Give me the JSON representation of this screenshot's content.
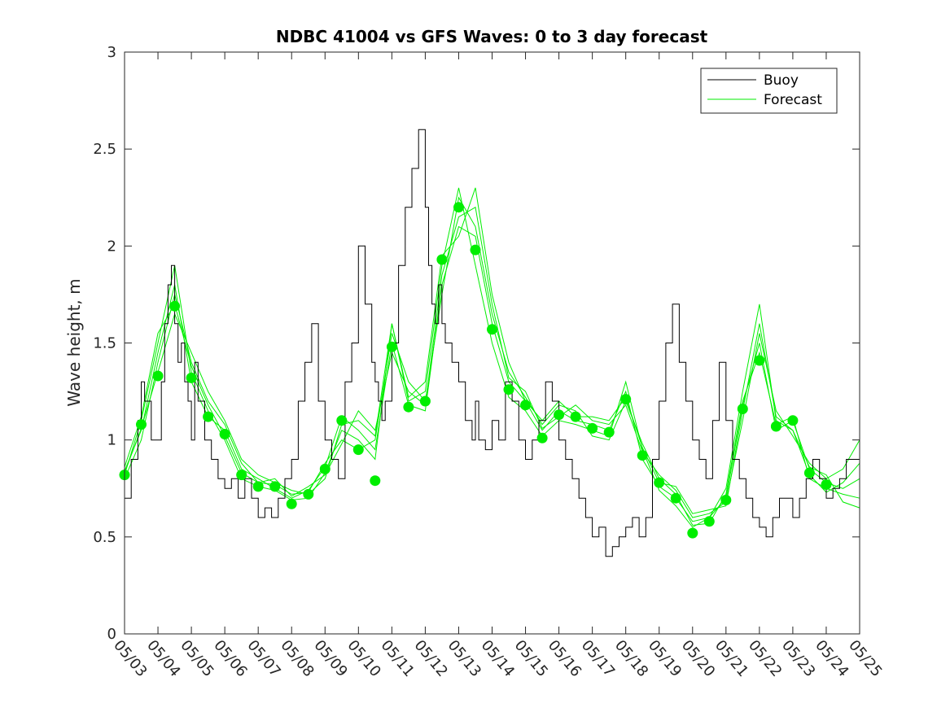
{
  "chart_data": {
    "type": "line",
    "title": "NDBC 41004 vs GFS Waves: 0 to 3 day forecast",
    "xlabel": "",
    "ylabel": "Wave height, m",
    "ylim": [
      0,
      3
    ],
    "xlim": [
      0,
      22
    ],
    "yticks": [
      "0",
      "0.5",
      "1",
      "1.5",
      "2",
      "2.5",
      "3"
    ],
    "xticks": [
      "05/03",
      "05/04",
      "05/05",
      "05/06",
      "05/07",
      "05/08",
      "05/09",
      "05/10",
      "05/11",
      "05/12",
      "05/13",
      "05/14",
      "05/15",
      "05/16",
      "05/17",
      "05/18",
      "05/19",
      "05/20",
      "05/21",
      "05/22",
      "05/23",
      "05/24",
      "05/25"
    ],
    "legend_position": "top-right",
    "grid": false,
    "colors": {
      "buoy": "#000000",
      "forecast": "#00ee00",
      "markers": "#00ee00"
    },
    "series": [
      {
        "name": "Buoy",
        "x": [
          0.0,
          0.2,
          0.4,
          0.5,
          0.6,
          0.8,
          1.0,
          1.1,
          1.2,
          1.3,
          1.4,
          1.5,
          1.6,
          1.7,
          1.8,
          1.9,
          2.0,
          2.1,
          2.2,
          2.4,
          2.6,
          2.8,
          3.0,
          3.2,
          3.4,
          3.6,
          3.8,
          4.0,
          4.2,
          4.4,
          4.6,
          4.8,
          5.0,
          5.2,
          5.4,
          5.6,
          5.8,
          6.0,
          6.2,
          6.4,
          6.6,
          6.8,
          7.0,
          7.2,
          7.4,
          7.5,
          7.6,
          7.7,
          7.8,
          8.0,
          8.2,
          8.4,
          8.6,
          8.8,
          9.0,
          9.1,
          9.2,
          9.3,
          9.4,
          9.5,
          9.6,
          9.8,
          10.0,
          10.2,
          10.4,
          10.5,
          10.6,
          10.8,
          11.0,
          11.2,
          11.4,
          11.6,
          11.8,
          12.0,
          12.2,
          12.4,
          12.6,
          12.8,
          13.0,
          13.2,
          13.4,
          13.6,
          13.8,
          14.0,
          14.2,
          14.4,
          14.6,
          14.8,
          15.0,
          15.2,
          15.4,
          15.6,
          15.8,
          16.0,
          16.2,
          16.4,
          16.6,
          16.8,
          17.0,
          17.2,
          17.4,
          17.6,
          17.8,
          18.0,
          18.2,
          18.4,
          18.6,
          18.8,
          19.0,
          19.2,
          19.4,
          19.6,
          19.8,
          20.0,
          20.2,
          20.4,
          20.6,
          20.8,
          21.0,
          21.2,
          21.4,
          21.6,
          21.8,
          22.0
        ],
        "values": [
          0.7,
          0.9,
          1.1,
          1.3,
          1.2,
          1.0,
          1.0,
          1.3,
          1.6,
          1.8,
          1.9,
          1.6,
          1.4,
          1.5,
          1.3,
          1.2,
          1.0,
          1.4,
          1.2,
          1.0,
          0.9,
          0.8,
          0.75,
          0.8,
          0.7,
          0.8,
          0.7,
          0.6,
          0.65,
          0.6,
          0.7,
          0.8,
          0.9,
          1.2,
          1.4,
          1.6,
          1.2,
          1.0,
          0.9,
          0.8,
          1.3,
          1.5,
          2.0,
          1.7,
          1.4,
          1.3,
          1.2,
          1.1,
          1.2,
          1.5,
          1.9,
          2.2,
          2.4,
          2.6,
          2.2,
          1.9,
          1.7,
          1.6,
          1.8,
          1.6,
          1.5,
          1.4,
          1.3,
          1.1,
          1.0,
          1.2,
          1.0,
          0.95,
          1.1,
          1.0,
          1.3,
          1.2,
          1.0,
          0.9,
          1.0,
          1.1,
          1.3,
          1.2,
          1.0,
          0.9,
          0.8,
          0.7,
          0.6,
          0.5,
          0.55,
          0.4,
          0.45,
          0.5,
          0.55,
          0.6,
          0.5,
          0.6,
          0.9,
          1.2,
          1.5,
          1.7,
          1.4,
          1.2,
          1.0,
          0.9,
          0.8,
          1.1,
          1.4,
          1.1,
          0.9,
          0.8,
          0.7,
          0.6,
          0.55,
          0.5,
          0.6,
          0.7,
          0.7,
          0.6,
          0.7,
          0.8,
          0.9,
          0.8,
          0.7,
          0.75,
          0.8,
          0.9,
          0.9,
          0.8
        ]
      },
      {
        "name": "Forecast",
        "x": [
          0.0,
          0.5,
          1.0,
          1.5,
          2.0,
          2.5,
          3.0,
          3.5,
          4.0,
          4.5,
          5.0,
          5.5,
          6.0,
          6.5,
          7.0,
          7.5,
          8.0,
          8.5,
          9.0,
          9.5,
          10.0,
          10.5,
          11.0,
          11.5,
          12.0,
          12.5,
          13.0,
          13.5,
          14.0,
          14.5,
          15.0,
          15.5,
          16.0,
          16.5,
          17.0,
          17.5,
          18.0,
          18.5,
          19.0,
          19.5,
          20.0,
          20.5,
          21.0,
          21.5,
          22.0
        ],
        "values": [
          0.82,
          1.08,
          1.33,
          1.69,
          1.32,
          1.12,
          1.03,
          0.82,
          0.76,
          0.76,
          0.67,
          0.72,
          0.85,
          1.1,
          0.95,
          0.79,
          1.48,
          1.17,
          1.2,
          1.93,
          2.2,
          1.98,
          1.57,
          1.26,
          1.18,
          1.01,
          1.13,
          1.12,
          1.06,
          1.04,
          1.21,
          0.92,
          0.78,
          0.7,
          0.52,
          0.58,
          0.69,
          1.16,
          1.41,
          1.07,
          1.1,
          0.83,
          0.77,
          0.8,
          0.85
        ]
      }
    ],
    "forecast_runs": [
      [
        0.82,
        1.1,
        1.5,
        1.9,
        1.35,
        1.15,
        1.0,
        0.8,
        0.76,
        0.74,
        0.69,
        0.7,
        0.83,
        1.05,
        1.0,
        0.9,
        1.6,
        1.2,
        1.25,
        1.9,
        2.3,
        1.9,
        1.5,
        1.22,
        1.15,
        1.02,
        1.1,
        1.08,
        1.05,
        1.02,
        1.3,
        0.95,
        0.74,
        0.66,
        0.55,
        0.6,
        0.75,
        1.25,
        1.7,
        1.1,
        1.05,
        0.82,
        0.73,
        0.78,
        0.88
      ],
      [
        0.84,
        1.05,
        1.45,
        1.8,
        1.3,
        1.12,
        1.05,
        0.85,
        0.8,
        0.75,
        0.7,
        0.74,
        0.86,
        1.12,
        1.05,
        0.95,
        1.5,
        1.18,
        1.15,
        1.8,
        2.1,
        2.05,
        1.6,
        1.3,
        1.2,
        1.05,
        1.15,
        1.1,
        1.08,
        1.05,
        1.25,
        0.9,
        0.76,
        0.7,
        0.58,
        0.6,
        0.7,
        1.18,
        1.5,
        1.05,
        1.1,
        0.85,
        0.78,
        0.75,
        0.8
      ],
      [
        0.8,
        1.0,
        1.4,
        1.75,
        1.4,
        1.2,
        1.08,
        0.88,
        0.78,
        0.77,
        0.72,
        0.73,
        0.88,
        1.0,
        0.95,
        1.0,
        1.55,
        1.3,
        1.2,
        1.75,
        2.25,
        2.1,
        1.65,
        1.35,
        1.22,
        1.08,
        1.18,
        1.15,
        1.02,
        1.0,
        1.2,
        0.98,
        0.8,
        0.72,
        0.56,
        0.57,
        0.72,
        1.2,
        1.45,
        1.08,
        1.12,
        0.8,
        0.75,
        0.72,
        0.7
      ],
      [
        0.86,
        1.12,
        1.55,
        1.7,
        1.38,
        1.18,
        1.02,
        0.83,
        0.78,
        0.8,
        0.71,
        0.76,
        0.82,
        0.98,
        1.15,
        1.05,
        1.45,
        1.25,
        1.18,
        1.85,
        2.15,
        2.2,
        1.7,
        1.32,
        1.25,
        1.06,
        1.12,
        1.18,
        1.1,
        1.08,
        1.18,
        0.94,
        0.82,
        0.74,
        0.6,
        0.62,
        0.68,
        1.1,
        1.55,
        1.15,
        1.02,
        0.88,
        0.8,
        0.85,
        1.0
      ],
      [
        0.83,
        1.06,
        1.35,
        1.65,
        1.45,
        1.25,
        1.1,
        0.9,
        0.82,
        0.78,
        0.74,
        0.72,
        0.8,
        1.08,
        1.1,
        1.02,
        1.6,
        1.22,
        1.3,
        1.95,
        2.05,
        2.3,
        1.75,
        1.4,
        1.2,
        1.1,
        1.2,
        1.12,
        1.12,
        1.1,
        1.22,
        0.96,
        0.78,
        0.76,
        0.62,
        0.64,
        0.66,
        1.15,
        1.6,
        1.12,
        1.05,
        0.86,
        0.82,
        0.68,
        0.65
      ]
    ]
  }
}
